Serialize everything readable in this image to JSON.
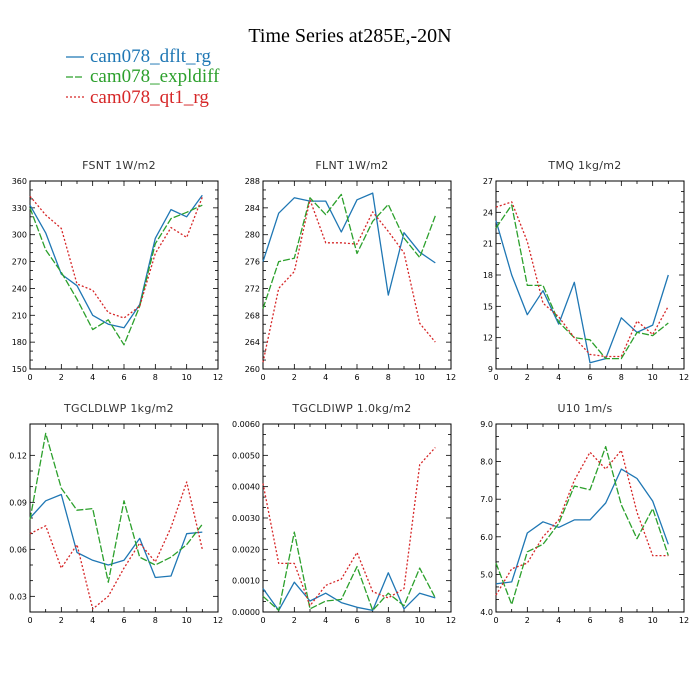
{
  "figure_title": "Time Series at285E,-20N",
  "legend": [
    {
      "label": "cam078_dflt_rg",
      "color": "#1f77b4"
    },
    {
      "label": "cam078_expldiff",
      "color": "#2ca02c"
    },
    {
      "label": "cam078_qt1_rg",
      "color": "#d62728"
    }
  ],
  "chart_data": [
    {
      "type": "line",
      "title": "FSNT   1W/m2",
      "x": [
        0,
        1,
        2,
        3,
        4,
        5,
        6,
        7,
        8,
        9,
        10,
        11
      ],
      "xlim": [
        0,
        12
      ],
      "xticks": [
        0,
        2,
        4,
        6,
        8,
        10,
        12
      ],
      "ylim": [
        150,
        360
      ],
      "yticks": [
        150,
        180,
        210,
        240,
        270,
        300,
        330,
        360
      ],
      "ytick_labels": [
        "150",
        "180",
        "210",
        "240",
        "270",
        "300",
        "330",
        "360"
      ],
      "series": [
        {
          "name": "cam078_dflt_rg",
          "values": [
            333,
            302,
            256,
            243,
            210,
            200,
            196,
            222,
            296,
            328,
            320,
            344
          ]
        },
        {
          "name": "cam078_expldiff",
          "values": [
            330,
            283,
            258,
            228,
            194,
            205,
            177,
            220,
            290,
            318,
            325,
            333
          ]
        },
        {
          "name": "cam078_qt1_rg",
          "values": [
            343,
            322,
            307,
            245,
            238,
            213,
            207,
            220,
            279,
            308,
            297,
            342
          ]
        }
      ]
    },
    {
      "type": "line",
      "title": "FLNT   1W/m2",
      "x": [
        0,
        1,
        2,
        3,
        4,
        5,
        6,
        7,
        8,
        9,
        10,
        11
      ],
      "xlim": [
        0,
        12
      ],
      "xticks": [
        0,
        2,
        4,
        6,
        8,
        10,
        12
      ],
      "ylim": [
        260,
        288
      ],
      "yticks": [
        260,
        264,
        268,
        272,
        276,
        280,
        284,
        288
      ],
      "ytick_labels": [
        "260",
        "264",
        "268",
        "272",
        "276",
        "280",
        "284",
        "288"
      ],
      "series": [
        {
          "name": "cam078_dflt_rg",
          "values": [
            276,
            283.2,
            285.5,
            285,
            285,
            280.4,
            285.2,
            286.2,
            271,
            280.3,
            277.4,
            275.8
          ]
        },
        {
          "name": "cam078_expldiff",
          "values": [
            269,
            276,
            276.5,
            285.5,
            283,
            286,
            277.2,
            282,
            284.5,
            279.5,
            276.6,
            282.8
          ]
        },
        {
          "name": "cam078_qt1_rg",
          "values": [
            261,
            272,
            274.5,
            285.2,
            278.8,
            278.8,
            278.6,
            283.4,
            280.5,
            277.3,
            266.8,
            264
          ]
        }
      ]
    },
    {
      "type": "line",
      "title": "TMQ   1kg/m2",
      "x": [
        0,
        1,
        2,
        3,
        4,
        5,
        6,
        7,
        8,
        9,
        10,
        11
      ],
      "xlim": [
        0,
        12
      ],
      "xticks": [
        0,
        2,
        4,
        6,
        8,
        10,
        12
      ],
      "ylim": [
        9,
        27
      ],
      "yticks": [
        9,
        12,
        15,
        18,
        21,
        24,
        27
      ],
      "ytick_labels": [
        "9",
        "12",
        "15",
        "18",
        "21",
        "24",
        "27"
      ],
      "series": [
        {
          "name": "cam078_dflt_rg",
          "values": [
            23.2,
            18,
            14.2,
            16.5,
            13.3,
            17.3,
            9.6,
            10,
            13.9,
            12.5,
            13.2,
            18
          ]
        },
        {
          "name": "cam078_expldiff",
          "values": [
            22.5,
            24.7,
            17,
            17,
            13.5,
            12,
            11.8,
            10,
            10,
            12.5,
            12.2,
            13.4
          ]
        },
        {
          "name": "cam078_qt1_rg",
          "values": [
            24.5,
            25,
            21.2,
            15.3,
            14,
            12,
            10.4,
            10.2,
            10.2,
            13.6,
            12.3,
            15
          ]
        }
      ]
    },
    {
      "type": "line",
      "title": "TGCLDLWP   1kg/m2",
      "x": [
        0,
        1,
        2,
        3,
        4,
        5,
        6,
        7,
        8,
        9,
        10,
        11
      ],
      "xlim": [
        0,
        12
      ],
      "xticks": [
        0,
        2,
        4,
        6,
        8,
        10,
        12
      ],
      "ylim": [
        0.02,
        0.14
      ],
      "yticks": [
        0.03,
        0.06,
        0.09,
        0.12
      ],
      "ytick_labels": [
        "0.03",
        "0.06",
        "0.09",
        "0.12"
      ],
      "series": [
        {
          "name": "cam078_dflt_rg",
          "values": [
            0.08,
            0.091,
            0.095,
            0.058,
            0.053,
            0.05,
            0.053,
            0.067,
            0.042,
            0.043,
            0.07,
            0.071
          ]
        },
        {
          "name": "cam078_expldiff",
          "values": [
            0.079,
            0.134,
            0.099,
            0.085,
            0.086,
            0.039,
            0.091,
            0.055,
            0.05,
            0.055,
            0.063,
            0.076
          ]
        },
        {
          "name": "cam078_qt1_rg",
          "values": [
            0.07,
            0.075,
            0.048,
            0.063,
            0.022,
            0.03,
            0.048,
            0.064,
            0.052,
            0.074,
            0.103,
            0.06
          ]
        }
      ]
    },
    {
      "type": "line",
      "title": "TGCLDIWP   1.0kg/m2",
      "x": [
        0,
        1,
        2,
        3,
        4,
        5,
        6,
        7,
        8,
        9,
        10,
        11
      ],
      "xlim": [
        0,
        12
      ],
      "xticks": [
        0,
        2,
        4,
        6,
        8,
        10,
        12
      ],
      "ylim": [
        0,
        0.006
      ],
      "yticks": [
        0,
        0.001,
        0.002,
        0.003,
        0.004,
        0.005,
        0.006
      ],
      "ytick_labels": [
        "0.0000",
        "0.0010",
        "0.0020",
        "0.0030",
        "0.0040",
        "0.0050",
        "0.0060"
      ],
      "series": [
        {
          "name": "cam078_dflt_rg",
          "values": [
            0.00075,
            5e-05,
            0.00095,
            0.00035,
            0.0006,
            0.0003,
            0.00015,
            5e-05,
            0.00125,
            0.0001,
            0.0006,
            0.00045
          ]
        },
        {
          "name": "cam078_expldiff",
          "values": [
            0.0005,
            5e-05,
            0.00255,
            0.0001,
            0.00035,
            0.0004,
            0.00145,
            5e-05,
            0.0006,
            0.0002,
            0.0014,
            0.00045
          ]
        },
        {
          "name": "cam078_qt1_rg",
          "values": [
            0.0041,
            0.00155,
            0.00155,
            0.0002,
            0.00085,
            0.00105,
            0.0019,
            0.00065,
            0.00045,
            0.00075,
            0.0047,
            0.00525
          ]
        }
      ]
    },
    {
      "type": "line",
      "title": "U10   1m/s",
      "x": [
        0,
        1,
        2,
        3,
        4,
        5,
        6,
        7,
        8,
        9,
        10,
        11
      ],
      "xlim": [
        0,
        12
      ],
      "xticks": [
        0,
        2,
        4,
        6,
        8,
        10,
        12
      ],
      "ylim": [
        4.0,
        9.0
      ],
      "yticks": [
        4,
        5,
        6,
        7,
        8,
        9
      ],
      "ytick_labels": [
        "4.0",
        "5.0",
        "6.0",
        "7.0",
        "8.0",
        "9.0"
      ],
      "series": [
        {
          "name": "cam078_dflt_rg",
          "values": [
            4.75,
            4.8,
            6.1,
            6.4,
            6.25,
            6.45,
            6.45,
            6.9,
            7.8,
            7.55,
            6.95,
            5.8
          ]
        },
        {
          "name": "cam078_expldiff",
          "values": [
            5.3,
            4.2,
            5.6,
            5.8,
            6.35,
            7.35,
            7.25,
            8.4,
            6.85,
            5.95,
            6.75,
            5.5
          ]
        },
        {
          "name": "cam078_qt1_rg",
          "values": [
            4.45,
            5.15,
            5.3,
            6.0,
            6.45,
            7.5,
            8.25,
            7.8,
            8.3,
            6.65,
            5.5,
            5.5
          ]
        }
      ]
    }
  ]
}
